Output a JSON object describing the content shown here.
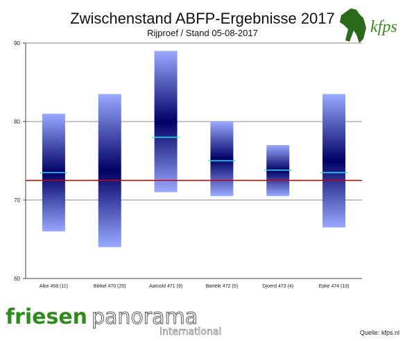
{
  "header": {
    "title": "Zwischenstand ABFP-Ergebnisse 2017",
    "subtitle": "Rijproef / Stand 05-08-2017"
  },
  "logos": {
    "kfps": "kfps",
    "friesenpanorama_1": "friesen",
    "friesenpanorama_2": "panorama",
    "friesenpanorama_3": "International"
  },
  "footer": {
    "source": "Quelle: kfps.nl"
  },
  "colors": {
    "bar_dark": "#000066",
    "bar_light": "#99aaff",
    "mean_line": "#33ddee",
    "reference_line": "#cc0000",
    "grid": "#888888"
  },
  "chart_data": {
    "type": "bar",
    "title": "Zwischenstand ABFP-Ergebnisse 2017",
    "subtitle": "Rijproef / Stand 05-08-2017",
    "categories": [
      "Alke 468 (11)",
      "Bikkel 470 (20)",
      "Aarnold 471 (9)",
      "Bartele 472 (5)",
      "Djoerd 473 (4)",
      "Epke 474 (10)"
    ],
    "series": [
      {
        "name": "",
        "role": "min",
        "values": [
          66,
          64,
          71,
          70.5,
          70.5,
          66.5
        ]
      },
      {
        "name": "",
        "role": "max",
        "values": [
          81,
          83.5,
          89,
          80,
          77,
          83.5
        ]
      },
      {
        "name": "",
        "role": "mean",
        "values": [
          73.5,
          72.5,
          78,
          75,
          73.8,
          73.5
        ]
      }
    ],
    "reference_line": 72.5,
    "ylim": [
      60,
      90
    ],
    "yticks": [
      60,
      70,
      80,
      90
    ],
    "grid": true,
    "legend": "none"
  }
}
